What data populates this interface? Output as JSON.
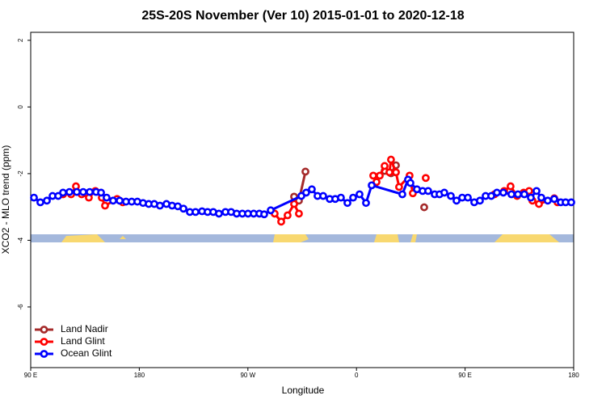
{
  "chart_data": {
    "type": "line",
    "title": "25S-20S November (Ver 10)   2015-01-01 to 2020-12-18",
    "x_label": "Longitude",
    "y_label": "XCO2 - MLO trend (ppm)",
    "xlim": [
      90,
      540
    ],
    "ylim": [
      -7.82,
      2.24
    ],
    "xticks": [
      {
        "value": 90,
        "label": "90 E"
      },
      {
        "value": 180,
        "label": "180"
      },
      {
        "value": 270,
        "label": "90 W"
      },
      {
        "value": 360,
        "label": "0"
      },
      {
        "value": 450,
        "label": "90 E"
      },
      {
        "value": 540,
        "label": "180"
      }
    ],
    "yticks": [
      2,
      0,
      -2,
      -4,
      -6
    ],
    "legend": "bottom-left",
    "series": [
      {
        "name": "Land Nadir",
        "color": "#a52a2a",
        "x": [
          308.3,
          312.3,
          317.7,
          null,
          383.3,
          388.6,
          392.7,
          null,
          416.1
        ],
        "values": [
          -2.69,
          -2.81,
          -1.94,
          null,
          -1.92,
          -1.99,
          -1.75,
          null,
          -3.01
        ]
      },
      {
        "name": "Land Glint",
        "color": "#ff0000",
        "x": [
          116.8,
          123.5,
          127.5,
          132.2,
          138.2,
          143.6,
          148.9,
          151.6,
          161.6,
          166.3,
          null,
          292.2,
          297.6,
          302.9,
          308.3,
          312.3,
          null,
          373.9,
          376.6,
          379.3,
          383.3,
          387.3,
          388.6,
          392.7,
          395.3,
          404.0,
          406.7,
          null,
          417.4,
          null,
          474.4,
          482.4,
          487.7,
          493.1,
          498.5,
          503.1,
          505.8,
          511.2,
          523.9,
          526.6
        ],
        "values": [
          -2.62,
          -2.62,
          -2.38,
          -2.62,
          -2.72,
          -2.52,
          -2.72,
          -2.96,
          -2.76,
          -2.86,
          null,
          -3.2,
          -3.44,
          -3.25,
          -2.91,
          -3.2,
          null,
          -2.06,
          -2.25,
          -2.06,
          -1.77,
          -1.96,
          -1.58,
          -1.96,
          -2.4,
          -2.06,
          -2.59,
          null,
          -2.13,
          null,
          -2.62,
          -2.52,
          -2.38,
          -2.67,
          -2.57,
          -2.52,
          -2.81,
          -2.91,
          -2.74,
          -2.86
        ]
      },
      {
        "name": "Ocean Glint",
        "color": "#0000ff",
        "x": [
          92.7,
          98.0,
          103.4,
          108.1,
          112.8,
          116.8,
          122.1,
          128.2,
          133.5,
          138.9,
          144.2,
          148.3,
          152.9,
          158.3,
          163.7,
          169.0,
          173.7,
          178.4,
          183.1,
          187.8,
          192.4,
          197.1,
          202.5,
          207.2,
          211.9,
          216.6,
          221.9,
          226.6,
          232.0,
          236.6,
          241.3,
          246.0,
          251.4,
          256.1,
          260.7,
          265.4,
          270.1,
          274.8,
          279.5,
          283.5,
          288.9,
          314.3,
          318.3,
          323.0,
          327.7,
          332.4,
          337.8,
          342.4,
          347.1,
          352.5,
          357.2,
          362.5,
          367.9,
          372.6,
          398.0,
          402.7,
          404.7,
          410.1,
          414.8,
          419.4,
          424.8,
          428.8,
          432.8,
          438.2,
          442.9,
          447.6,
          452.3,
          457.6,
          462.3,
          467.0,
          471.7,
          476.4,
          481.7,
          488.4,
          493.8,
          499.1,
          504.5,
          509.2,
          513.2,
          518.5,
          523.9,
          529.3,
          533.3,
          538.0
        ],
        "values": [
          -2.72,
          -2.86,
          -2.81,
          -2.67,
          -2.67,
          -2.57,
          -2.55,
          -2.55,
          -2.55,
          -2.55,
          -2.55,
          -2.57,
          -2.72,
          -2.81,
          -2.81,
          -2.84,
          -2.84,
          -2.84,
          -2.88,
          -2.91,
          -2.91,
          -2.96,
          -2.91,
          -2.96,
          -2.98,
          -3.05,
          -3.15,
          -3.15,
          -3.13,
          -3.15,
          -3.15,
          -3.2,
          -3.15,
          -3.15,
          -3.2,
          -3.2,
          -3.2,
          -3.2,
          -3.2,
          -3.22,
          -3.1,
          -2.67,
          -2.57,
          -2.47,
          -2.67,
          -2.67,
          -2.76,
          -2.76,
          -2.72,
          -2.88,
          -2.72,
          -2.62,
          -2.88,
          -2.35,
          -2.62,
          -2.18,
          -2.28,
          -2.47,
          -2.52,
          -2.52,
          -2.62,
          -2.62,
          -2.57,
          -2.67,
          -2.81,
          -2.72,
          -2.72,
          -2.86,
          -2.81,
          -2.67,
          -2.67,
          -2.57,
          -2.57,
          -2.62,
          -2.62,
          -2.62,
          -2.72,
          -2.52,
          -2.72,
          -2.81,
          -2.76,
          -2.86,
          -2.86,
          -2.86
        ]
      }
    ]
  }
}
